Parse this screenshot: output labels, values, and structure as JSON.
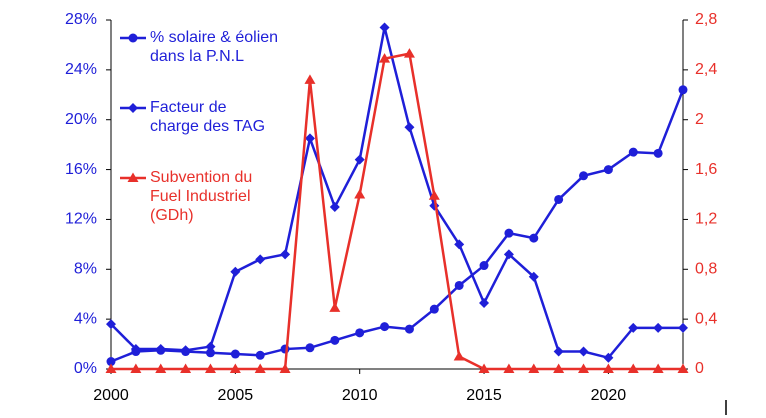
{
  "chart_data": {
    "type": "line",
    "x": [
      2000,
      2001,
      2002,
      2003,
      2004,
      2005,
      2006,
      2007,
      2008,
      2009,
      2010,
      2011,
      2012,
      2013,
      2014,
      2015,
      2016,
      2017,
      2018,
      2019,
      2020,
      2021,
      2022,
      2023
    ],
    "xlim": [
      2000,
      2023
    ],
    "xticks": [
      2000,
      2005,
      2010,
      2015,
      2020
    ],
    "ylim": [
      0,
      28
    ],
    "yticks": [
      {
        "value": 0,
        "label": "0%"
      },
      {
        "value": 4,
        "label": "4%"
      },
      {
        "value": 8,
        "label": "8%"
      },
      {
        "value": 12,
        "label": "12%"
      },
      {
        "value": 16,
        "label": "16%"
      },
      {
        "value": 20,
        "label": "20%"
      },
      {
        "value": 24,
        "label": "24%"
      },
      {
        "value": 28,
        "label": "28%"
      }
    ],
    "y2lim": [
      0,
      2.8
    ],
    "y2ticks": [
      0,
      {
        "value": 0.4,
        "label": "0,4"
      },
      {
        "value": 0.8,
        "label": "0,8"
      },
      {
        "value": 1.2,
        "label": "1,2"
      },
      {
        "value": 1.6,
        "label": "1,6"
      },
      2,
      {
        "value": 2.4,
        "label": "2,4"
      },
      {
        "value": 2.8,
        "label": "2,8"
      }
    ],
    "grid": false,
    "legend": "top-left",
    "series": [
      {
        "name": "% solaire & éolien dans la P.N.L",
        "color": "#1f1fd8",
        "marker": "circle",
        "values": [
          0.6,
          1.4,
          1.5,
          1.4,
          1.3,
          1.2,
          1.1,
          1.6,
          1.7,
          2.3,
          2.9,
          3.4,
          3.2,
          4.8,
          6.7,
          8.3,
          10.9,
          10.5,
          13.6,
          15.5,
          16.0,
          17.4,
          17.3,
          22.4
        ]
      },
      {
        "name": "Facteur de charge des TAG",
        "color": "#1f1fd8",
        "marker": "diamond",
        "values": [
          3.6,
          1.6,
          1.6,
          1.5,
          1.8,
          7.8,
          8.8,
          9.2,
          18.5,
          13.0,
          16.8,
          27.4,
          19.4,
          13.1,
          10.0,
          5.3,
          9.2,
          7.4,
          1.4,
          1.4,
          0.9,
          3.3,
          3.3,
          3.3
        ]
      },
      {
        "name": "Subvention du Fuel Industriel (GDh)",
        "color": "#e8302a",
        "marker": "triangle",
        "axis": "y2",
        "values": [
          0,
          0,
          0,
          0,
          0,
          0,
          0,
          0,
          2.32,
          0.49,
          1.4,
          2.49,
          2.53,
          1.39,
          0.1,
          0,
          0,
          0,
          0,
          0,
          0,
          0,
          0,
          0
        ]
      }
    ]
  }
}
